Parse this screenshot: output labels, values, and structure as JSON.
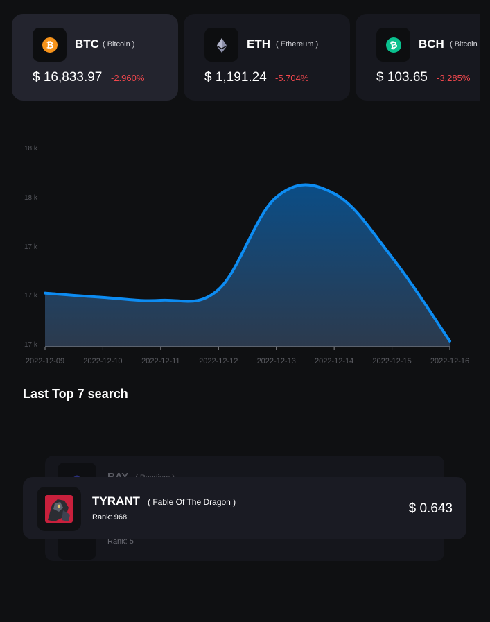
{
  "coins": [
    {
      "symbol": "BTC",
      "name": "( Bitcoin )",
      "price": "$ 16,833.97",
      "change": "-2.960%",
      "icon": "bitcoin-icon",
      "color": "#f7931a",
      "active": true
    },
    {
      "symbol": "ETH",
      "name": "( Ethereum )",
      "price": "$ 1,191.24",
      "change": "-5.704%",
      "icon": "ethereum-icon",
      "color": "#8c8fa8",
      "active": false
    },
    {
      "symbol": "BCH",
      "name": "( Bitcoin Cash )",
      "price": "$ 103.65",
      "change": "-3.285%",
      "icon": "bitcoin-cash-icon",
      "color": "#0ac18e",
      "active": false
    }
  ],
  "chart_data": {
    "type": "area",
    "x": [
      "2022-12-09",
      "2022-12-10",
      "2022-12-11",
      "2022-12-12",
      "2022-12-13",
      "2022-12-14",
      "2022-12-15",
      "2022-12-16"
    ],
    "values": [
      17140,
      17110,
      17090,
      17165,
      17810,
      17835,
      17390,
      16805
    ],
    "y_ticks": [
      "18 k",
      "18 k",
      "17 k",
      "17 k",
      "17 k"
    ],
    "ylim": [
      16780,
      18170
    ],
    "line_color": "#0d8cf2",
    "grid": false
  },
  "search": {
    "title": "Last Top 7 search",
    "back_item": {
      "symbol": "RAY",
      "name": "( Raydium )",
      "rank": "Rank: 5"
    },
    "front_item": {
      "symbol": "TYRANT",
      "name": "( Fable Of The Dragon )",
      "rank": "Rank: 968",
      "price": "$ 0.643",
      "icon": "tyrant-token-icon"
    }
  }
}
